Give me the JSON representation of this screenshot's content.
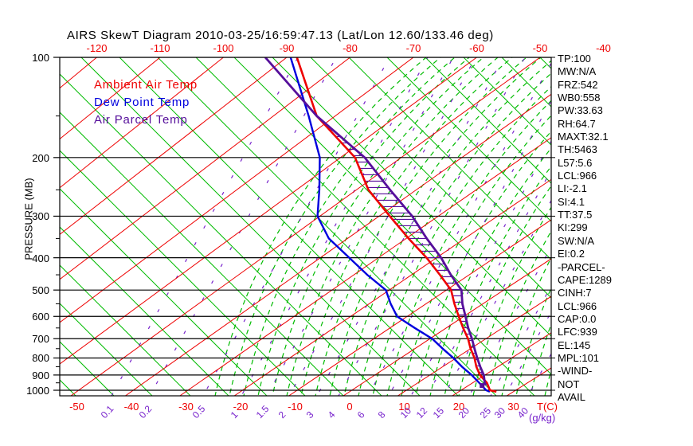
{
  "title": "AIRS SkewT Diagram 2010-03-25/16:59:47.13 (Lat/Lon 12.60/133.46 deg)",
  "legend": [
    {
      "label": "Ambient Air Temp",
      "color": "#ee0000"
    },
    {
      "label": "Dew Point Temp",
      "color": "#0000dd"
    },
    {
      "label": "Air Parcel Temp",
      "color": "#560f9b"
    }
  ],
  "stats": [
    "TP:100",
    "MW:N/A",
    "FRZ:542",
    "WB0:558",
    "PW:33.63",
    "RH:64.7",
    "MAXT:32.1",
    "TH:5463",
    "L57:5.6",
    "LCL:966",
    "LI:-2.1",
    "SI:4.1",
    "TT:37.5",
    "KI:299",
    "SW:N/A",
    "EI:0.2",
    "-PARCEL-",
    "CAPE:1289",
    "CINH:7",
    "LCL:966",
    "CAP:0.0",
    "LFC:939",
    "EL:145",
    "MPL:101",
    "-WIND-",
    "NOT",
    "AVAIL"
  ],
  "axes": {
    "pressure_title": "PRESSURE (MB)",
    "pressure_ticks": [
      100,
      200,
      300,
      400,
      500,
      600,
      700,
      800,
      900,
      1000
    ],
    "pressure_minor_ticks": [
      150,
      250,
      350,
      450,
      550,
      650,
      750,
      850,
      950
    ],
    "temp_top_labels": [
      -120,
      -110,
      -100,
      -90,
      -80,
      -70,
      -60,
      -50,
      -40
    ],
    "temp_bottom_labels": [
      -50,
      -40,
      -30,
      -20,
      -10,
      0,
      10,
      20,
      30
    ],
    "temp_unit": "T(C)",
    "mixing_unit": "(g/kg)",
    "mixing_ticks": [
      {
        "label": "0.1",
        "x": 140
      },
      {
        "label": "0.2",
        "x": 188
      },
      {
        "label": "0.5",
        "x": 255
      },
      {
        "label": "1",
        "x": 303
      },
      {
        "label": "1.5",
        "x": 335
      },
      {
        "label": "2",
        "x": 363
      },
      {
        "label": "3",
        "x": 398
      },
      {
        "label": "4",
        "x": 425
      },
      {
        "label": "6",
        "x": 462
      },
      {
        "label": "8",
        "x": 488
      },
      {
        "label": "10",
        "x": 516
      },
      {
        "label": "12",
        "x": 536
      },
      {
        "label": "15",
        "x": 557
      },
      {
        "label": "20",
        "x": 589
      },
      {
        "label": "25",
        "x": 616
      },
      {
        "label": "30",
        "x": 634
      },
      {
        "label": "40",
        "x": 663
      }
    ]
  },
  "colors": {
    "isotherm": "#ee0000",
    "dry_adiabat": "#00bb00",
    "moist_adiabat": "#00bb00",
    "mixing_line": "#7722cc",
    "ambient": "#ee0000",
    "dewpoint": "#0000dd",
    "parcel": "#560f9b",
    "hatch": "#560f9b",
    "grid": "#000000"
  },
  "chart_data": {
    "type": "line",
    "subtype": "skewt-log-p",
    "title": "AIRS SkewT Diagram 2010-03-25/16:59:47.13 (Lat/Lon 12.60/133.46 deg)",
    "xlabel": "T(C)",
    "ylabel": "PRESSURE (MB)",
    "pressure_range_mb": [
      100,
      1000
    ],
    "temp_range_c_at_surface": [
      -50,
      30
    ],
    "grid": "skew-t background: red isotherms, green dry/moist adiabats, purple mixing-ratio lines",
    "series": [
      {
        "name": "Ambient Air Temp",
        "units": [
          "mb",
          "C"
        ],
        "points": [
          [
            1010,
            26.9
          ],
          [
            1000,
            25.3
          ],
          [
            950,
            22.6
          ],
          [
            900,
            19.1
          ],
          [
            850,
            16.1
          ],
          [
            800,
            13.3
          ],
          [
            750,
            10.0
          ],
          [
            700,
            6.8
          ],
          [
            650,
            3.0
          ],
          [
            600,
            -0.9
          ],
          [
            550,
            -5.0
          ],
          [
            500,
            -9.2
          ],
          [
            450,
            -15.1
          ],
          [
            400,
            -21.7
          ],
          [
            350,
            -29.6
          ],
          [
            300,
            -38.2
          ],
          [
            250,
            -48.0
          ],
          [
            200,
            -57.6
          ],
          [
            150,
            -73.0
          ],
          [
            100,
            -88.4
          ]
        ]
      },
      {
        "name": "Dew Point Temp",
        "units": [
          "mb",
          "C"
        ],
        "points": [
          [
            1010,
            25.7
          ],
          [
            1000,
            24.6
          ],
          [
            950,
            21.2
          ],
          [
            900,
            17.6
          ],
          [
            850,
            13.5
          ],
          [
            800,
            9.5
          ],
          [
            750,
            5.0
          ],
          [
            700,
            0.4
          ],
          [
            650,
            -5.6
          ],
          [
            600,
            -11.8
          ],
          [
            550,
            -16.2
          ],
          [
            500,
            -20.6
          ],
          [
            450,
            -27.7
          ],
          [
            400,
            -35.0
          ],
          [
            350,
            -43.2
          ],
          [
            300,
            -50.4
          ],
          [
            250,
            -56.2
          ],
          [
            200,
            -63.4
          ],
          [
            150,
            -74.3
          ],
          [
            100,
            -89.4
          ]
        ]
      },
      {
        "name": "Air Parcel Temp",
        "units": [
          "mb",
          "C"
        ],
        "points": [
          [
            965,
            23.1
          ],
          [
            950,
            22.2
          ],
          [
            900,
            19.8
          ],
          [
            850,
            16.8
          ],
          [
            800,
            13.8
          ],
          [
            750,
            10.7
          ],
          [
            700,
            7.5
          ],
          [
            650,
            3.9
          ],
          [
            600,
            0.3
          ],
          [
            550,
            -3.6
          ],
          [
            500,
            -7.4
          ],
          [
            450,
            -13.2
          ],
          [
            400,
            -19.2
          ],
          [
            350,
            -26.5
          ],
          [
            300,
            -34.4
          ],
          [
            250,
            -44.4
          ],
          [
            200,
            -56.0
          ],
          [
            150,
            -73.0
          ],
          [
            100,
            -93.4
          ]
        ]
      }
    ],
    "cape_hatch_between_mb": {
      "from": 939,
      "to": 145
    },
    "parcel_start_marker": {
      "p": 968,
      "t": 22.5
    }
  }
}
